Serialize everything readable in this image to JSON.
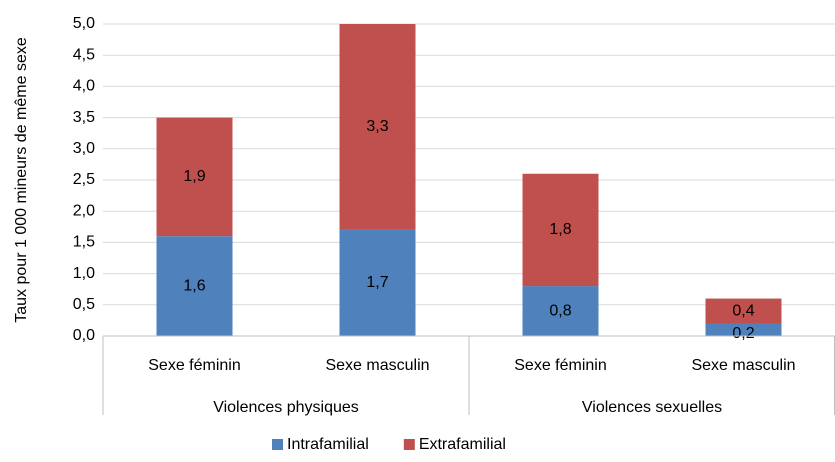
{
  "chart_data": {
    "type": "stacked_bar",
    "ylabel": "Taux pour 1 000 mineurs de même sexe",
    "groups": [
      {
        "label": "Violences physiques",
        "categories": [
          "Sexe féminin",
          "Sexe masculin"
        ]
      },
      {
        "label": "Violences sexuelles",
        "categories": [
          "Sexe féminin",
          "Sexe masculin"
        ]
      }
    ],
    "series": [
      {
        "name": "Intrafamilial",
        "color": "#4f81bd",
        "values": [
          1.6,
          1.7,
          0.8,
          0.2
        ],
        "value_labels": [
          "1,6",
          "1,7",
          "0,8",
          "0,2"
        ]
      },
      {
        "name": "Extrafamilial",
        "color": "#c0504d",
        "values": [
          1.9,
          3.3,
          1.8,
          0.4
        ],
        "value_labels": [
          "1,9",
          "3,3",
          "1,8",
          "0,4"
        ]
      }
    ],
    "ylim": [
      0,
      5
    ],
    "yticks": [
      {
        "value": 0,
        "label": "0,0"
      },
      {
        "value": 0.5,
        "label": "0,5"
      },
      {
        "value": 1,
        "label": "1,0"
      },
      {
        "value": 1.5,
        "label": "1,5"
      },
      {
        "value": 2,
        "label": "2,0"
      },
      {
        "value": 2.5,
        "label": "2,5"
      },
      {
        "value": 3,
        "label": "3,0"
      },
      {
        "value": 3.5,
        "label": "3,5"
      },
      {
        "value": 4,
        "label": "4,0"
      },
      {
        "value": 4.5,
        "label": "4,5"
      },
      {
        "value": 5,
        "label": "5,0"
      }
    ],
    "grid": true,
    "legend": "bottom"
  }
}
